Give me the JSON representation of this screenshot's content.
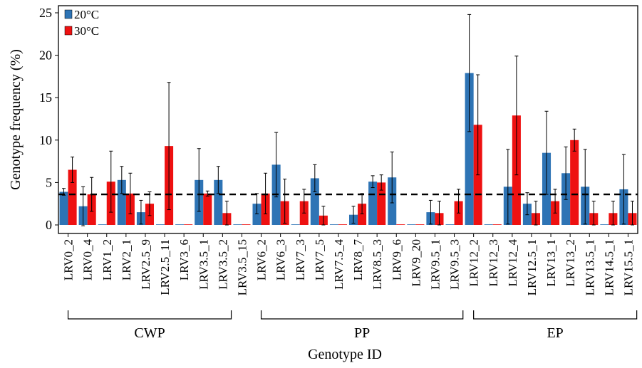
{
  "chart_data": {
    "type": "bar",
    "title": "",
    "xlabel": "Genotype ID",
    "ylabel": "Genotype frequency (%)",
    "ylim": [
      0,
      25
    ],
    "yticks": [
      0,
      5,
      10,
      15,
      20,
      25
    ],
    "grid": false,
    "legend_position": "top-left",
    "reference_line": {
      "y": 3.6,
      "style": "dashed"
    },
    "categories": [
      "LRV0_2",
      "LRV0_4",
      "LRV1_2",
      "LRV2_1",
      "LRV2.5_9",
      "LRV2.5_11",
      "LRV3_6",
      "LRV3.5_1",
      "LRV3.5_2",
      "LRV3.5_15",
      "LRV6_2",
      "LRV6_3",
      "LRV7_3",
      "LRV7_5",
      "LRV7.5_4",
      "LRV8_7",
      "LRV8.5_3",
      "LRV9_6",
      "LRV9_20",
      "LRV9.5_1",
      "LRV9.5_3",
      "LRV12_2",
      "LRV12_3",
      "LRV12_4",
      "LRV12.5_1",
      "LRV13_1",
      "LRV13_2",
      "LRV13.5_1",
      "LRV14.5_1",
      "LRV15.5_1"
    ],
    "series": [
      {
        "name": "20°C",
        "color": "#2e74b5",
        "values": [
          3.9,
          2.2,
          0,
          5.3,
          1.5,
          0,
          0,
          5.3,
          5.3,
          0,
          2.5,
          7.1,
          0,
          5.5,
          0,
          1.2,
          5.1,
          5.6,
          0,
          1.5,
          0,
          17.9,
          0,
          4.5,
          2.5,
          8.5,
          6.1,
          4.5,
          0,
          4.2
        ],
        "errors": [
          0.4,
          2.3,
          0,
          1.6,
          1.4,
          0,
          0,
          3.7,
          1.6,
          0,
          1.2,
          3.8,
          0,
          1.6,
          0,
          1.0,
          0.7,
          3.0,
          0,
          1.4,
          0,
          6.9,
          0,
          4.4,
          1.3,
          4.9,
          3.1,
          4.4,
          0,
          4.1
        ]
      },
      {
        "name": "30°C",
        "color": "#ee1111",
        "values": [
          6.5,
          3.6,
          5.1,
          3.7,
          2.5,
          9.3,
          0,
          3.7,
          1.4,
          0,
          3.7,
          2.8,
          2.8,
          1.1,
          0,
          2.5,
          5.0,
          0,
          0,
          1.4,
          2.8,
          11.8,
          0,
          12.9,
          1.4,
          2.8,
          10.0,
          1.4,
          1.4,
          1.4
        ],
        "errors": [
          1.5,
          2.0,
          3.6,
          2.4,
          1.4,
          7.5,
          0,
          0.3,
          1.4,
          0,
          2.4,
          2.6,
          1.4,
          1.1,
          0,
          1.2,
          0.9,
          0,
          0,
          1.4,
          1.4,
          5.9,
          0,
          7.0,
          1.4,
          1.4,
          1.3,
          1.4,
          1.4,
          1.4
        ]
      }
    ],
    "groups": [
      {
        "label": "CWP",
        "from": "LRV0_2",
        "to": "LRV3.5_2"
      },
      {
        "label": "PP",
        "from": "LRV6_2",
        "to": "LRV9.5_3"
      },
      {
        "label": "EP",
        "from": "LRV12_2",
        "to": "LRV15.5_1"
      }
    ]
  }
}
